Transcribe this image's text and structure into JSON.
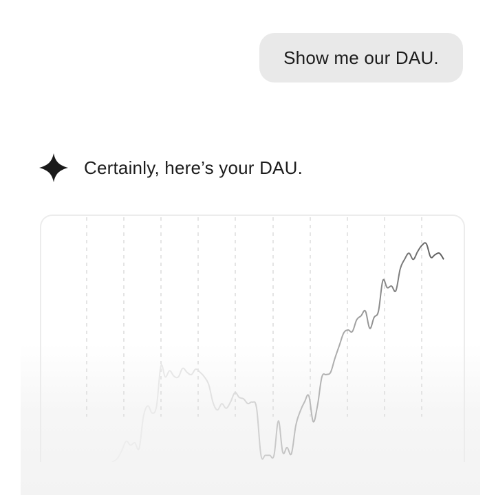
{
  "conversation": {
    "user_message": "Show me our DAU.",
    "assistant_message": "Certainly, here’s your DAU.",
    "assistant_icon": "sparkle-icon"
  },
  "colors": {
    "bubble_bg": "#e9e9e9",
    "icon": "#1a1a1a",
    "line_start": "#ededed",
    "line_end": "#5a5a5a",
    "grid": "#dcdcdc"
  },
  "chart_data": {
    "type": "line",
    "title": "",
    "xlabel": "",
    "ylabel": "",
    "grid": "vertical dashed",
    "legend": "none",
    "series": [
      {
        "values": [
          0,
          4,
          8,
          18,
          30,
          25,
          28,
          21,
          62,
          75,
          66,
          75,
          126,
          112,
          120,
          113,
          112,
          123,
          118,
          115,
          122,
          118,
          112,
          102,
          79,
          70,
          78,
          72,
          80,
          92,
          86,
          84,
          78,
          80,
          72,
          12,
          12,
          12,
          12,
          56,
          16,
          22,
          14,
          50,
          68,
          80,
          88,
          55,
          76,
          112,
          115,
          118,
          136,
          152,
          168,
          172,
          170,
          185,
          190,
          196,
          174,
          188,
          196,
          235,
          226,
          228,
          222,
          250,
          262,
          270,
          262,
          272,
          280,
          282,
          265,
          268,
          270,
          262
        ]
      }
    ]
  }
}
